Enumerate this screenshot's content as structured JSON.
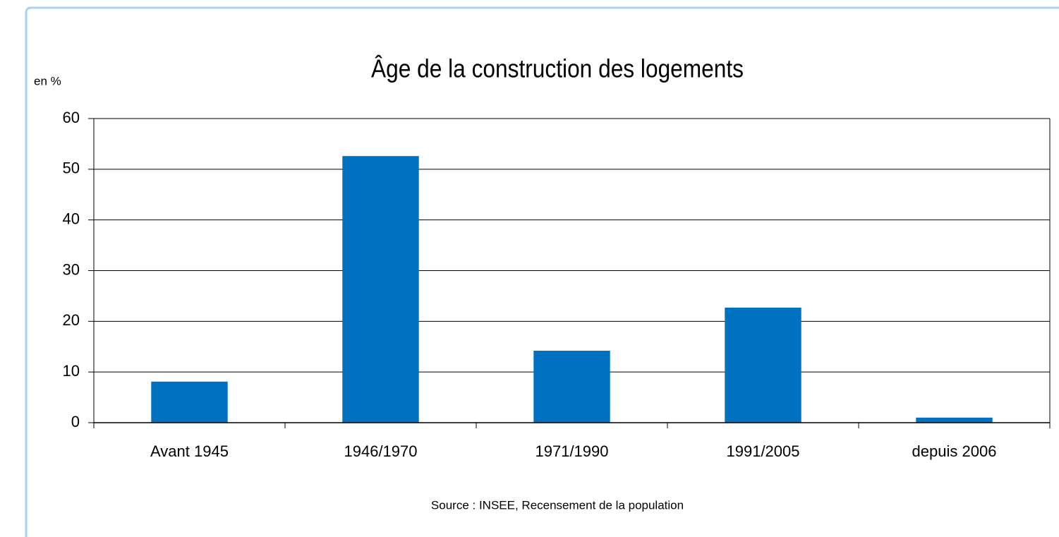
{
  "chart_data": {
    "type": "bar",
    "title": "Âge de la construction des logements",
    "y_label": "en %",
    "source": "Source : INSEE, Recensement de la population",
    "categories": [
      "Avant 1945",
      "1946/1970",
      "1971/1990",
      "1991/2005",
      "depuis 2006"
    ],
    "values": [
      8.1,
      52.6,
      14.2,
      22.7,
      1.0
    ],
    "color": "#0070c0",
    "ylim": [
      0,
      60
    ],
    "yticks": [
      0,
      10,
      20,
      30,
      40,
      50,
      60
    ],
    "grid": true
  }
}
